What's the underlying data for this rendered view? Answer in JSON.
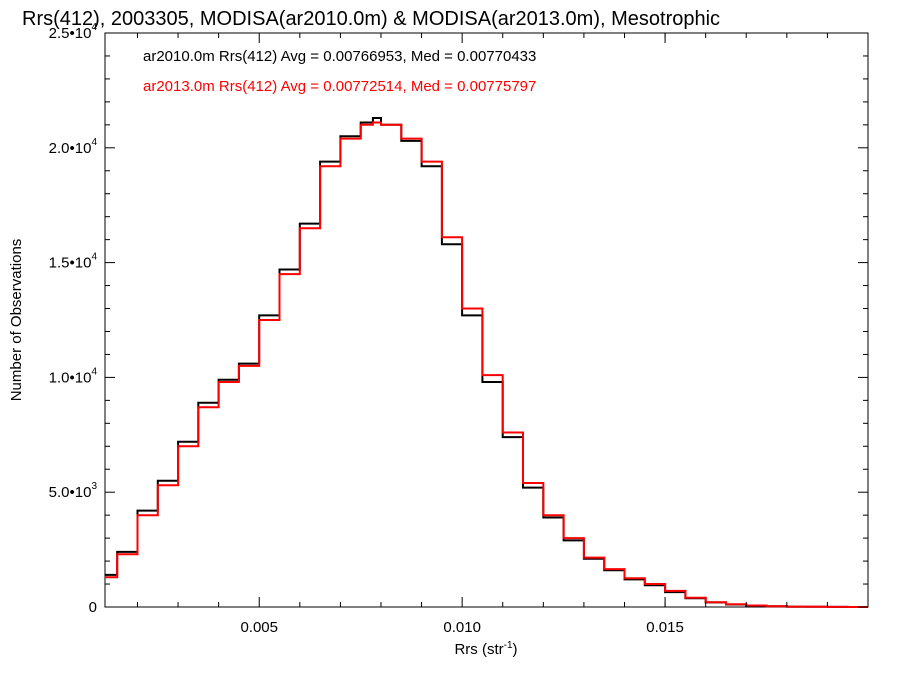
{
  "chart_data": {
    "type": "line",
    "step": true,
    "title": "Rrs(412), 2003305, MODISA(ar2010.0m) & MODISA(ar2013.0m), Mesotrophic",
    "xlabel": {
      "base": "Rrs (str",
      "exp": "-1",
      "close": ")"
    },
    "ylabel": "Number of Observations",
    "xlim": [
      0.0012,
      0.02
    ],
    "ylim": [
      0,
      25000
    ],
    "x_ticks": [
      {
        "value": 0.005,
        "label": "0.005"
      },
      {
        "value": 0.01,
        "label": "0.010"
      },
      {
        "value": 0.015,
        "label": "0.015"
      }
    ],
    "y_ticks": [
      {
        "value": 0,
        "mant": "0",
        "exp": ""
      },
      {
        "value": 5000,
        "mant": "5.0•1",
        "exp": "3"
      },
      {
        "value": 10000,
        "mant": "1.0•1",
        "exp": "4"
      },
      {
        "value": 15000,
        "mant": "1.5•1",
        "exp": "4"
      },
      {
        "value": 20000,
        "mant": "2.0•1",
        "exp": "4"
      },
      {
        "value": 25000,
        "mant": "2.5•1",
        "exp": "4"
      }
    ],
    "annotations": [
      {
        "text": "ar2010.0m Rrs(412) Avg = 0.00766953, Med = 0.00770433",
        "color": "#000000"
      },
      {
        "text": "ar2013.0m Rrs(412) Avg = 0.00772514, Med = 0.00775797",
        "color": "#ff0000"
      }
    ],
    "series": [
      {
        "color": "#000000",
        "x": [
          0.0012,
          0.0015,
          0.002,
          0.0025,
          0.003,
          0.0035,
          0.004,
          0.0045,
          0.005,
          0.0055,
          0.006,
          0.0065,
          0.007,
          0.0075,
          0.0078,
          0.008,
          0.0085,
          0.009,
          0.0095,
          0.01,
          0.0105,
          0.011,
          0.0115,
          0.012,
          0.0125,
          0.013,
          0.0135,
          0.014,
          0.0145,
          0.015,
          0.0155,
          0.016,
          0.0165,
          0.017,
          0.0175,
          0.018,
          0.0185,
          0.019,
          0.0195,
          0.02
        ],
        "y": [
          1400,
          2400,
          4200,
          5500,
          7200,
          8900,
          9900,
          10600,
          12700,
          14700,
          16700,
          19400,
          20500,
          21100,
          21300,
          21000,
          20300,
          19200,
          15800,
          12700,
          9800,
          7400,
          5200,
          3900,
          2900,
          2100,
          1600,
          1200,
          950,
          650,
          380,
          200,
          110,
          60,
          30,
          15,
          8,
          4,
          2,
          0
        ]
      },
      {
        "color": "#ff0000",
        "x": [
          0.0012,
          0.0015,
          0.002,
          0.0025,
          0.003,
          0.0035,
          0.004,
          0.0045,
          0.005,
          0.0055,
          0.006,
          0.0065,
          0.007,
          0.0075,
          0.0078,
          0.008,
          0.0085,
          0.009,
          0.0095,
          0.01,
          0.0105,
          0.011,
          0.0115,
          0.012,
          0.0125,
          0.013,
          0.0135,
          0.014,
          0.0145,
          0.015,
          0.0155,
          0.016,
          0.0165,
          0.017,
          0.0175,
          0.018,
          0.0185,
          0.019,
          0.0195,
          0.02
        ],
        "y": [
          1300,
          2300,
          4000,
          5300,
          7000,
          8700,
          9800,
          10500,
          12500,
          14500,
          16500,
          19200,
          20400,
          21000,
          21100,
          21000,
          20400,
          19400,
          16100,
          13000,
          10100,
          7600,
          5400,
          4000,
          3000,
          2150,
          1650,
          1250,
          1000,
          700,
          400,
          210,
          120,
          65,
          32,
          16,
          8,
          4,
          2,
          0
        ]
      }
    ]
  }
}
